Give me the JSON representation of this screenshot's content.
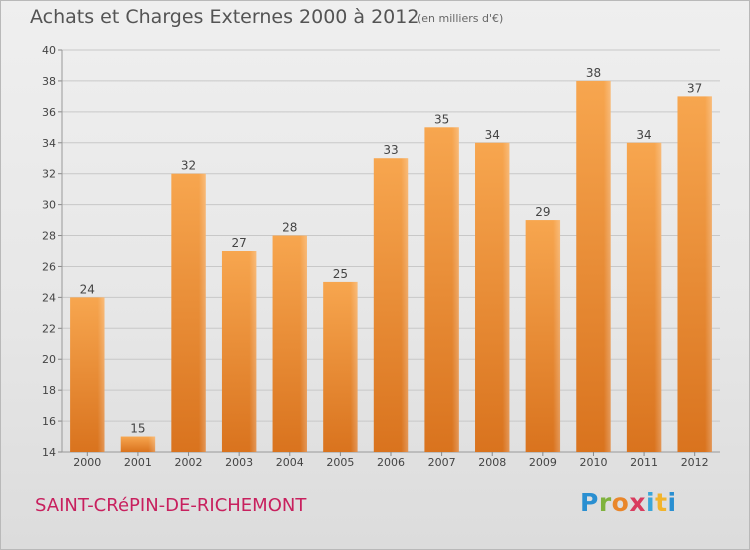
{
  "header": {
    "title": "Achats et Charges Externes 2000 à 2012",
    "unit": "(en milliers d'€)"
  },
  "footer": {
    "place": "SAINT-CRéPIN-DE-RICHEMONT",
    "logo": [
      "P",
      "r",
      "o",
      "x",
      "i",
      "t",
      "i"
    ]
  },
  "colors": {
    "bar_top": "#f7a64f",
    "bar_bottom": "#d9731e",
    "grid": "#c8c8c8",
    "text": "#444444",
    "place": "#c8205e"
  },
  "chart_data": {
    "type": "bar",
    "title": "Achats et Charges Externes 2000 à 2012",
    "xlabel": "",
    "ylabel": "",
    "categories": [
      "2000",
      "2001",
      "2002",
      "2003",
      "2004",
      "2005",
      "2006",
      "2007",
      "2008",
      "2009",
      "2010",
      "2011",
      "2012"
    ],
    "values": [
      24,
      15,
      32,
      27,
      28,
      25,
      33,
      35,
      34,
      29,
      38,
      34,
      37
    ],
    "ylim": [
      14,
      40
    ],
    "yticks": [
      14,
      16,
      18,
      20,
      22,
      24,
      26,
      28,
      30,
      32,
      34,
      36,
      38,
      40
    ],
    "grid": true,
    "data_labels": true
  }
}
